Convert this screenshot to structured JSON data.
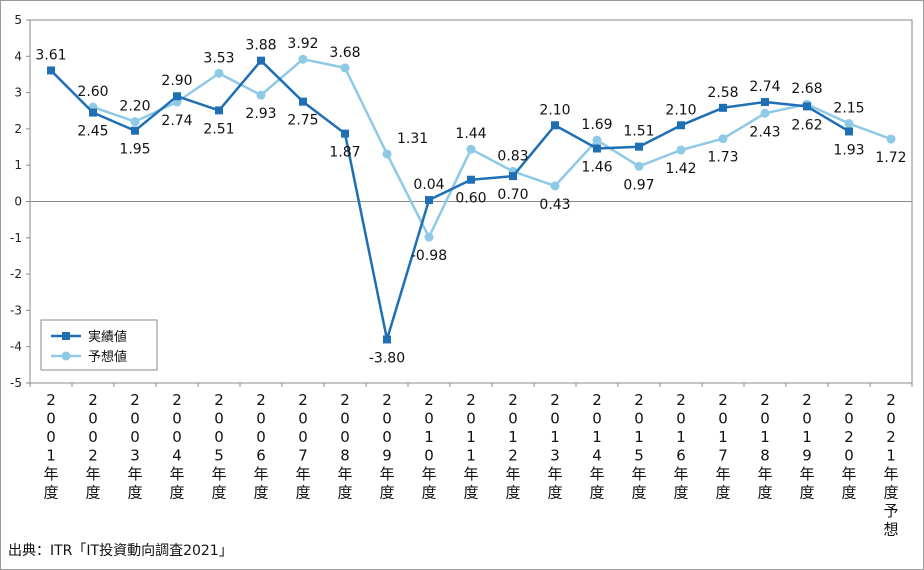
{
  "chart_data": {
    "type": "line",
    "x_categories": [
      "2001年度",
      "2002年度",
      "2003年度",
      "2004年度",
      "2005年度",
      "2006年度",
      "2007年度",
      "2008年度",
      "2009年度",
      "2010年度",
      "2011年度",
      "2012年度",
      "2013年度",
      "2014年度",
      "2015年度",
      "2016年度",
      "2017年度",
      "2018年度",
      "2019年度",
      "2020年度",
      "2021年度予想"
    ],
    "y_ticks": [
      5,
      4,
      3,
      2,
      1,
      0,
      -1,
      -2,
      -3,
      -4,
      -5
    ],
    "ylim": [
      -5,
      5
    ],
    "grid": false,
    "legend_position": "bottom-left",
    "series": [
      {
        "name": "実績値",
        "color": "#1f6fb4",
        "marker": "square",
        "values": [
          3.61,
          2.45,
          1.95,
          2.9,
          2.51,
          3.88,
          2.75,
          1.87,
          -3.8,
          0.04,
          0.6,
          0.7,
          2.1,
          1.46,
          1.51,
          2.1,
          2.58,
          2.74,
          2.62,
          1.93,
          null
        ]
      },
      {
        "name": "予想値",
        "color": "#8ecae6",
        "marker": "circle",
        "values": [
          null,
          2.6,
          2.2,
          2.74,
          3.53,
          2.93,
          3.92,
          3.68,
          1.31,
          -0.98,
          1.44,
          0.83,
          0.43,
          1.69,
          0.97,
          1.42,
          1.73,
          2.43,
          2.68,
          2.15,
          1.72
        ]
      }
    ],
    "data_labels": [
      {
        "text": "3.61"
      },
      {
        "text": "2.60"
      },
      {
        "text": "2.45"
      },
      {
        "text": "2.20"
      },
      {
        "text": "1.95"
      },
      {
        "text": "2.90"
      },
      {
        "text": "2.74"
      },
      {
        "text": "3.53"
      },
      {
        "text": "2.51"
      },
      {
        "text": "3.88"
      },
      {
        "text": "2.93"
      },
      {
        "text": "3.92"
      },
      {
        "text": "2.75"
      },
      {
        "text": "3.68"
      },
      {
        "text": "1.87"
      },
      {
        "text": "1.31"
      },
      {
        "text": "-3.80"
      },
      {
        "text": "0.04"
      },
      {
        "text": "-0.98"
      },
      {
        "text": "1.44"
      },
      {
        "text": "0.60"
      },
      {
        "text": "0.83"
      },
      {
        "text": "0.70"
      },
      {
        "text": "2.10"
      },
      {
        "text": "0.43"
      },
      {
        "text": "1.69"
      },
      {
        "text": "1.46"
      },
      {
        "text": "1.51"
      },
      {
        "text": "0.97"
      },
      {
        "text": "2.10"
      },
      {
        "text": "1.42"
      },
      {
        "text": "2.58"
      },
      {
        "text": "1.73"
      },
      {
        "text": "2.74"
      },
      {
        "text": "2.43"
      },
      {
        "text": "2.68"
      },
      {
        "text": "2.62"
      },
      {
        "text": "2.15"
      },
      {
        "text": "1.93"
      },
      {
        "text": "1.72"
      }
    ]
  },
  "source_note": "出典：ITR「IT投資動向調査2021」"
}
